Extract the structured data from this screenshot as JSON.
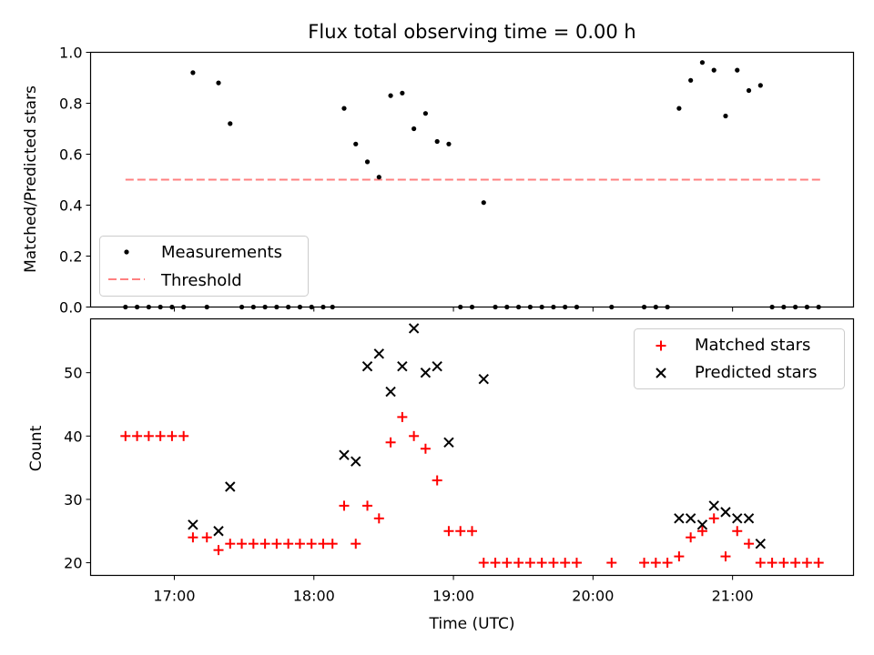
{
  "chart_data": [
    {
      "type": "scatter",
      "title": "Flux total observing time = 0.00 h",
      "xlabel": "",
      "ylabel": "Matched/Predicted stars",
      "ylim": [
        0,
        1.0
      ],
      "yticks": [
        "0.0",
        "0.2",
        "0.4",
        "0.6",
        "0.8",
        "1.0"
      ],
      "xtick_labels_visible": false,
      "legend": {
        "placement": "lower-left",
        "entries": [
          "Measurements",
          "Threshold"
        ]
      },
      "colors": {
        "measurements": "#000000",
        "threshold": "#ff8080"
      },
      "threshold": {
        "name": "Threshold",
        "value": 0.5,
        "x_start": "16:39",
        "x_end": "21:38"
      },
      "series": [
        {
          "name": "Measurements",
          "marker": "dot",
          "points": [
            [
              "16:39",
              0.0
            ],
            [
              "16:44",
              0.0
            ],
            [
              "16:49",
              0.0
            ],
            [
              "16:54",
              0.0
            ],
            [
              "16:59",
              0.0
            ],
            [
              "17:04",
              0.0
            ],
            [
              "17:08",
              0.92
            ],
            [
              "17:14",
              0.0
            ],
            [
              "17:19",
              0.88
            ],
            [
              "17:24",
              0.72
            ],
            [
              "17:29",
              0.0
            ],
            [
              "17:34",
              0.0
            ],
            [
              "17:39",
              0.0
            ],
            [
              "17:44",
              0.0
            ],
            [
              "17:49",
              0.0
            ],
            [
              "17:54",
              0.0
            ],
            [
              "17:59",
              0.0
            ],
            [
              "18:04",
              0.0
            ],
            [
              "18:08",
              0.0
            ],
            [
              "18:13",
              0.78
            ],
            [
              "18:18",
              0.64
            ],
            [
              "18:23",
              0.57
            ],
            [
              "18:28",
              0.51
            ],
            [
              "18:33",
              0.83
            ],
            [
              "18:38",
              0.84
            ],
            [
              "18:43",
              0.7
            ],
            [
              "18:48",
              0.76
            ],
            [
              "18:53",
              0.65
            ],
            [
              "18:58",
              0.64
            ],
            [
              "19:03",
              0.0
            ],
            [
              "19:08",
              0.0
            ],
            [
              "19:13",
              0.41
            ],
            [
              "19:18",
              0.0
            ],
            [
              "19:23",
              0.0
            ],
            [
              "19:28",
              0.0
            ],
            [
              "19:33",
              0.0
            ],
            [
              "19:38",
              0.0
            ],
            [
              "19:43",
              0.0
            ],
            [
              "19:48",
              0.0
            ],
            [
              "19:53",
              0.0
            ],
            [
              "20:08",
              0.0
            ],
            [
              "20:22",
              0.0
            ],
            [
              "20:27",
              0.0
            ],
            [
              "20:32",
              0.0
            ],
            [
              "20:37",
              0.78
            ],
            [
              "20:42",
              0.89
            ],
            [
              "20:47",
              0.96
            ],
            [
              "20:52",
              0.93
            ],
            [
              "20:57",
              0.75
            ],
            [
              "21:02",
              0.93
            ],
            [
              "21:07",
              0.85
            ],
            [
              "21:12",
              0.87
            ],
            [
              "21:17",
              0.0
            ],
            [
              "21:22",
              0.0
            ],
            [
              "21:27",
              0.0
            ],
            [
              "21:32",
              0.0
            ],
            [
              "21:37",
              0.0
            ]
          ]
        }
      ]
    },
    {
      "type": "scatter",
      "title": "",
      "xlabel": "Time (UTC)",
      "ylabel": "Count",
      "xlim": [
        "16:24",
        "21:52"
      ],
      "ylim": [
        18,
        58.5
      ],
      "yticks": [
        "20",
        "30",
        "40",
        "50"
      ],
      "xticks": [
        "17:00",
        "18:00",
        "19:00",
        "20:00",
        "21:00"
      ],
      "legend": {
        "placement": "upper-right",
        "entries": [
          "Matched stars",
          "Predicted stars"
        ]
      },
      "colors": {
        "matched": "#ff0000",
        "predicted": "#000000"
      },
      "series": [
        {
          "name": "Matched stars",
          "marker": "plus",
          "points": [
            [
              "16:39",
              40
            ],
            [
              "16:44",
              40
            ],
            [
              "16:49",
              40
            ],
            [
              "16:54",
              40
            ],
            [
              "16:59",
              40
            ],
            [
              "17:04",
              40
            ],
            [
              "17:08",
              24
            ],
            [
              "17:14",
              24
            ],
            [
              "17:19",
              22
            ],
            [
              "17:24",
              23
            ],
            [
              "17:29",
              23
            ],
            [
              "17:34",
              23
            ],
            [
              "17:39",
              23
            ],
            [
              "17:44",
              23
            ],
            [
              "17:49",
              23
            ],
            [
              "17:54",
              23
            ],
            [
              "17:59",
              23
            ],
            [
              "18:04",
              23
            ],
            [
              "18:08",
              23
            ],
            [
              "18:13",
              29
            ],
            [
              "18:18",
              23
            ],
            [
              "18:23",
              29
            ],
            [
              "18:28",
              27
            ],
            [
              "18:33",
              39
            ],
            [
              "18:38",
              43
            ],
            [
              "18:43",
              40
            ],
            [
              "18:48",
              38
            ],
            [
              "18:53",
              33
            ],
            [
              "18:58",
              25
            ],
            [
              "19:03",
              25
            ],
            [
              "19:08",
              25
            ],
            [
              "19:13",
              20
            ],
            [
              "19:18",
              20
            ],
            [
              "19:23",
              20
            ],
            [
              "19:28",
              20
            ],
            [
              "19:33",
              20
            ],
            [
              "19:38",
              20
            ],
            [
              "19:43",
              20
            ],
            [
              "19:48",
              20
            ],
            [
              "19:53",
              20
            ],
            [
              "20:08",
              20
            ],
            [
              "20:22",
              20
            ],
            [
              "20:27",
              20
            ],
            [
              "20:32",
              20
            ],
            [
              "20:37",
              21
            ],
            [
              "20:42",
              24
            ],
            [
              "20:47",
              25
            ],
            [
              "20:52",
              27
            ],
            [
              "20:57",
              21
            ],
            [
              "21:02",
              25
            ],
            [
              "21:07",
              23
            ],
            [
              "21:12",
              20
            ],
            [
              "21:17",
              20
            ],
            [
              "21:22",
              20
            ],
            [
              "21:27",
              20
            ],
            [
              "21:32",
              20
            ],
            [
              "21:37",
              20
            ]
          ]
        },
        {
          "name": "Predicted stars",
          "marker": "x",
          "points": [
            [
              "17:08",
              26
            ],
            [
              "17:19",
              25
            ],
            [
              "17:24",
              32
            ],
            [
              "18:13",
              37
            ],
            [
              "18:18",
              36
            ],
            [
              "18:23",
              51
            ],
            [
              "18:28",
              53
            ],
            [
              "18:33",
              47
            ],
            [
              "18:38",
              51
            ],
            [
              "18:43",
              57
            ],
            [
              "18:48",
              50
            ],
            [
              "18:53",
              51
            ],
            [
              "18:58",
              39
            ],
            [
              "19:13",
              49
            ],
            [
              "20:37",
              27
            ],
            [
              "20:42",
              27
            ],
            [
              "20:47",
              26
            ],
            [
              "20:52",
              29
            ],
            [
              "20:57",
              28
            ],
            [
              "21:02",
              27
            ],
            [
              "21:07",
              27
            ],
            [
              "21:12",
              23
            ]
          ]
        }
      ]
    }
  ]
}
